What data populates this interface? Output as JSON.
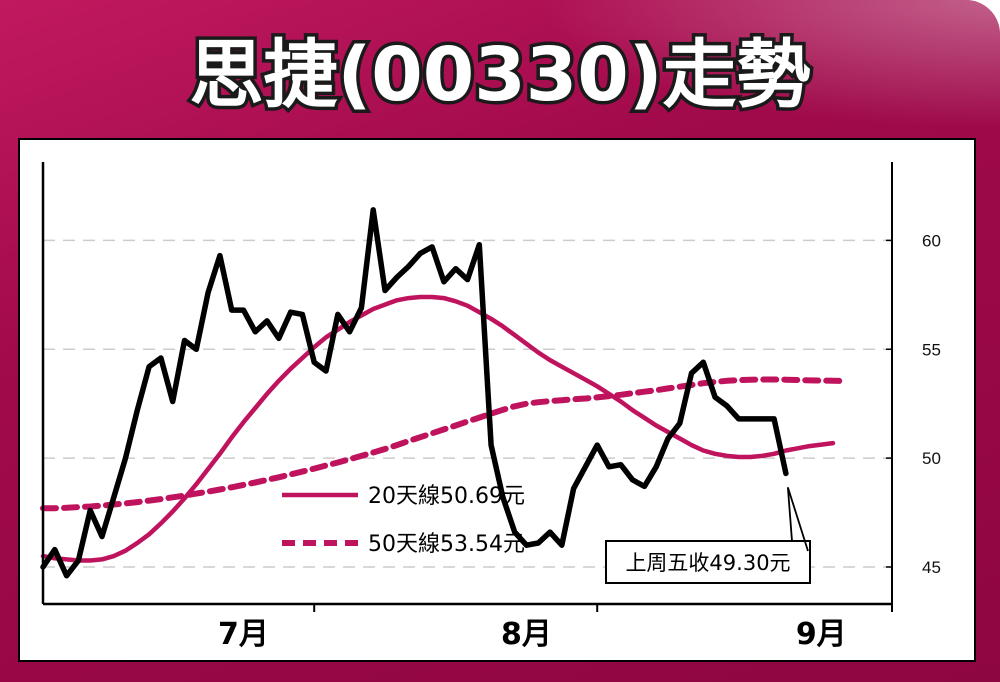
{
  "title": "思捷(00330)走勢",
  "colors": {
    "frame": "#a10a4b",
    "series_ma": "#c0135e",
    "price": "#000000",
    "grid": "#cccccc"
  },
  "chart_data": {
    "type": "line",
    "title": "思捷(00330)走勢",
    "xlabel": "",
    "ylabel": "",
    "ylim": [
      43.3,
      63.6
    ],
    "y_ticks": [
      45,
      50,
      55,
      60
    ],
    "y_tick_labels": [
      "45",
      "50",
      "55",
      "60"
    ],
    "x_tick_labels": [
      "7月",
      "8月",
      "9月"
    ],
    "x_label_pos": [
      17,
      41,
      66
    ],
    "x_minor_ticks": [
      23,
      47,
      72
    ],
    "x_count": 72,
    "grid": "horizontal-dashed",
    "legend_position": "bottom-center",
    "series": [
      {
        "name": "20天線",
        "legend_label": "20天線50.69元",
        "last_value": 50.69,
        "style": "solid",
        "values": [
          45.5,
          45.4,
          45.35,
          45.3,
          45.3,
          45.35,
          45.5,
          45.75,
          46.1,
          46.5,
          47.0,
          47.55,
          48.15,
          48.8,
          49.5,
          50.2,
          50.95,
          51.65,
          52.3,
          52.95,
          53.55,
          54.1,
          54.6,
          55.1,
          55.55,
          55.9,
          56.25,
          56.55,
          56.85,
          57.05,
          57.25,
          57.35,
          57.4,
          57.4,
          57.35,
          57.2,
          57.0,
          56.7,
          56.4,
          56.05,
          55.65,
          55.25,
          54.85,
          54.5,
          54.2,
          53.9,
          53.6,
          53.3,
          52.95,
          52.6,
          52.2,
          51.85,
          51.5,
          51.2,
          50.9,
          50.6,
          50.35,
          50.2,
          50.1,
          50.05,
          50.05,
          50.1,
          50.2,
          50.35,
          50.45,
          50.55,
          50.62,
          50.69
        ]
      },
      {
        "name": "50天線",
        "legend_label": "50天線53.54元",
        "last_value": 53.54,
        "style": "dashed",
        "values": [
          47.7,
          47.7,
          47.72,
          47.75,
          47.78,
          47.82,
          47.87,
          47.92,
          47.98,
          48.05,
          48.12,
          48.2,
          48.28,
          48.37,
          48.46,
          48.56,
          48.66,
          48.77,
          48.88,
          49.0,
          49.12,
          49.25,
          49.38,
          49.52,
          49.66,
          49.8,
          49.95,
          50.1,
          50.26,
          50.42,
          50.6,
          50.78,
          50.96,
          51.14,
          51.32,
          51.5,
          51.68,
          51.86,
          52.04,
          52.22,
          52.38,
          52.5,
          52.57,
          52.62,
          52.66,
          52.7,
          52.74,
          52.79,
          52.85,
          52.91,
          52.98,
          53.05,
          53.12,
          53.2,
          53.28,
          53.36,
          53.44,
          53.5,
          53.55,
          53.58,
          53.6,
          53.61,
          53.61,
          53.6,
          53.59,
          53.57,
          53.56,
          53.55,
          53.54
        ]
      },
      {
        "name": "",
        "style": "price",
        "values": [
          45.0,
          45.8,
          44.6,
          45.3,
          47.6,
          46.4,
          48.2,
          50.0,
          52.2,
          54.2,
          54.6,
          52.6,
          55.4,
          55.0,
          57.6,
          59.3,
          56.8,
          56.8,
          55.8,
          56.3,
          55.5,
          56.7,
          56.6,
          54.4,
          54.0,
          56.6,
          55.8,
          56.9,
          61.4,
          57.7,
          58.3,
          58.8,
          59.4,
          59.7,
          58.1,
          58.7,
          58.2,
          59.8,
          50.6,
          48.2,
          46.6,
          46.0,
          46.1,
          46.6,
          46.0,
          48.6,
          49.6,
          50.6,
          49.6,
          49.7,
          49.0,
          48.7,
          49.6,
          50.9,
          51.6,
          53.9,
          54.4,
          52.8,
          52.4,
          51.8,
          51.8,
          51.8,
          51.8,
          49.3
        ]
      }
    ],
    "annotations": [
      {
        "text": "上周五收49.30元",
        "value": 49.3
      }
    ]
  }
}
